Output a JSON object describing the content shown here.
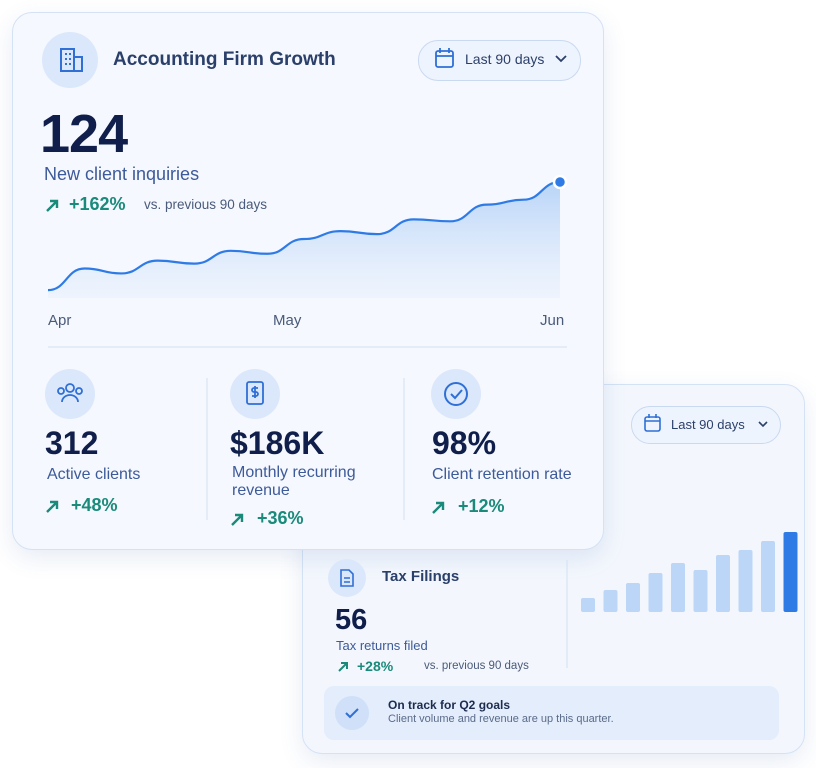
{
  "main": {
    "title": "Accounting Firm Growth",
    "range": "Last 90 days",
    "value": "124",
    "label": "New client inquiries",
    "change": "+162%",
    "comparison": "vs. previous 90 days",
    "chart": {
      "type": "line",
      "categories": [
        "Apr",
        "May",
        "Jun"
      ],
      "values": [
        8,
        30,
        25,
        38,
        35,
        48,
        45,
        60,
        68,
        65,
        80,
        78,
        95,
        100,
        118
      ],
      "color": "#2f7be6"
    }
  },
  "stats": [
    {
      "value": "312",
      "label": "Active clients",
      "change": "+48%"
    },
    {
      "value": "$186K",
      "label": "Monthly recurring revenue",
      "change": "+36%"
    },
    {
      "value": "98%",
      "label": "Client retention rate",
      "change": "+12%"
    }
  ],
  "secondary": {
    "range": "Last 90 days",
    "title": "Tax Filings",
    "value": "56",
    "label": "Tax returns filed",
    "change": "+28%",
    "comparison": "vs. previous 90 days",
    "chart": {
      "type": "bar",
      "values": [
        14,
        22,
        29,
        39,
        49,
        42,
        57,
        62,
        71,
        80
      ],
      "color": "#bcd6f7",
      "highlight_color": "#2f7be6"
    },
    "banner": {
      "title": "On track for Q2 goals",
      "text": "Client volume and revenue are up this quarter."
    }
  }
}
